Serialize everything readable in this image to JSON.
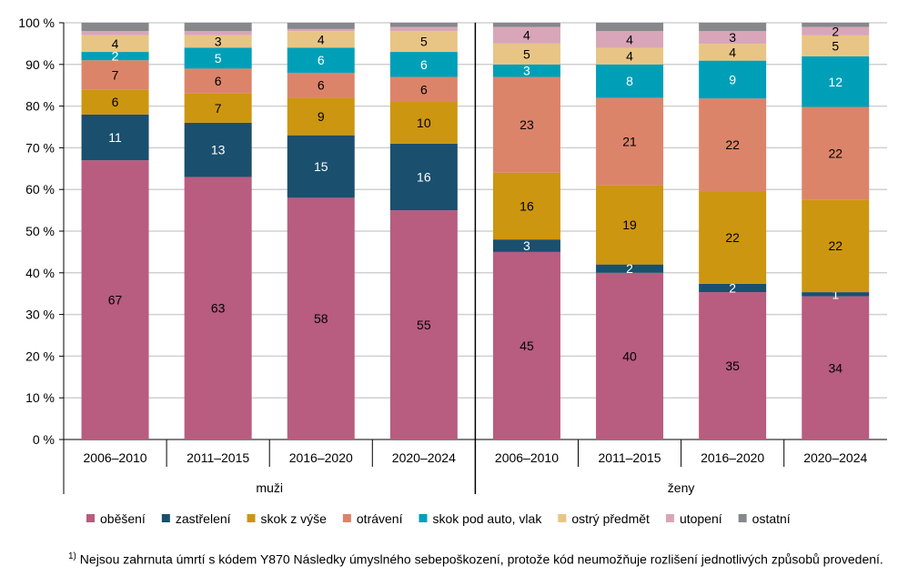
{
  "chart_data": {
    "type": "bar",
    "stacked": true,
    "ylim": [
      0,
      100
    ],
    "yticks": [
      "0 %",
      "10 %",
      "20 %",
      "30 %",
      "40 %",
      "50 %",
      "60 %",
      "70 %",
      "80 %",
      "90 %",
      "100 %"
    ],
    "grid": true,
    "legend_placement": "bottom",
    "groups": [
      {
        "label": "muži",
        "categories": [
          "2006–2010",
          "2011–2015",
          "2016–2020",
          "2020–2024"
        ]
      },
      {
        "label": "ženy",
        "categories": [
          "2006–2010",
          "2011–2015",
          "2016–2020",
          "2020–2024"
        ]
      }
    ],
    "series": [
      {
        "name": "oběšení",
        "color": "#b85c80",
        "label_color": "#000",
        "values": [
          67,
          63,
          58,
          55,
          45,
          40,
          35,
          34
        ],
        "labels": [
          true,
          true,
          true,
          true,
          true,
          true,
          true,
          true
        ]
      },
      {
        "name": "zastřelení",
        "color": "#1a4f6e",
        "label_color": "#fff",
        "values": [
          11,
          13,
          15,
          16,
          3,
          2,
          2,
          1
        ],
        "labels": [
          true,
          true,
          true,
          true,
          true,
          true,
          true,
          true
        ]
      },
      {
        "name": "skok z výše",
        "color": "#cc9610",
        "label_color": "#000",
        "values": [
          6,
          7,
          9,
          10,
          16,
          19,
          22,
          22
        ],
        "labels": [
          true,
          true,
          true,
          true,
          true,
          true,
          true,
          true
        ]
      },
      {
        "name": "otrávení",
        "color": "#dc846a",
        "label_color": "#000",
        "values": [
          7,
          6,
          6,
          6,
          23,
          21,
          22,
          22
        ],
        "labels": [
          true,
          true,
          true,
          true,
          true,
          true,
          true,
          true
        ]
      },
      {
        "name": "skok pod auto, vlak",
        "color": "#009fb8",
        "label_color": "#fff",
        "values": [
          2,
          5,
          6,
          6,
          3,
          8,
          9,
          12
        ],
        "labels": [
          true,
          true,
          true,
          true,
          true,
          true,
          true,
          true
        ]
      },
      {
        "name": "ostrý předmět",
        "color": "#e8c585",
        "label_color": "#000",
        "values": [
          4,
          3,
          4,
          5,
          5,
          4,
          4,
          5
        ],
        "labels": [
          true,
          true,
          true,
          true,
          true,
          true,
          true,
          true
        ]
      },
      {
        "name": "utopení",
        "color": "#d8a6b8",
        "label_color": "#000",
        "values": [
          1,
          1,
          0.5,
          1,
          4,
          4,
          3,
          2
        ],
        "labels": [
          false,
          false,
          false,
          false,
          true,
          true,
          true,
          true
        ]
      },
      {
        "name": "ostatní",
        "color": "#86888b",
        "label_color": "#000",
        "values": [
          2,
          2,
          1.5,
          1,
          1,
          2,
          2,
          1
        ],
        "labels": [
          false,
          false,
          false,
          false,
          false,
          false,
          false,
          false
        ]
      }
    ]
  },
  "footnote": {
    "marker": "1)",
    "text": "Nejsou zahrnuta úmrtí s kódem Y870 Následky úmyslného sebepoškození, protože kód neumožňuje rozlišení jednotlivých způsobů provedení."
  }
}
